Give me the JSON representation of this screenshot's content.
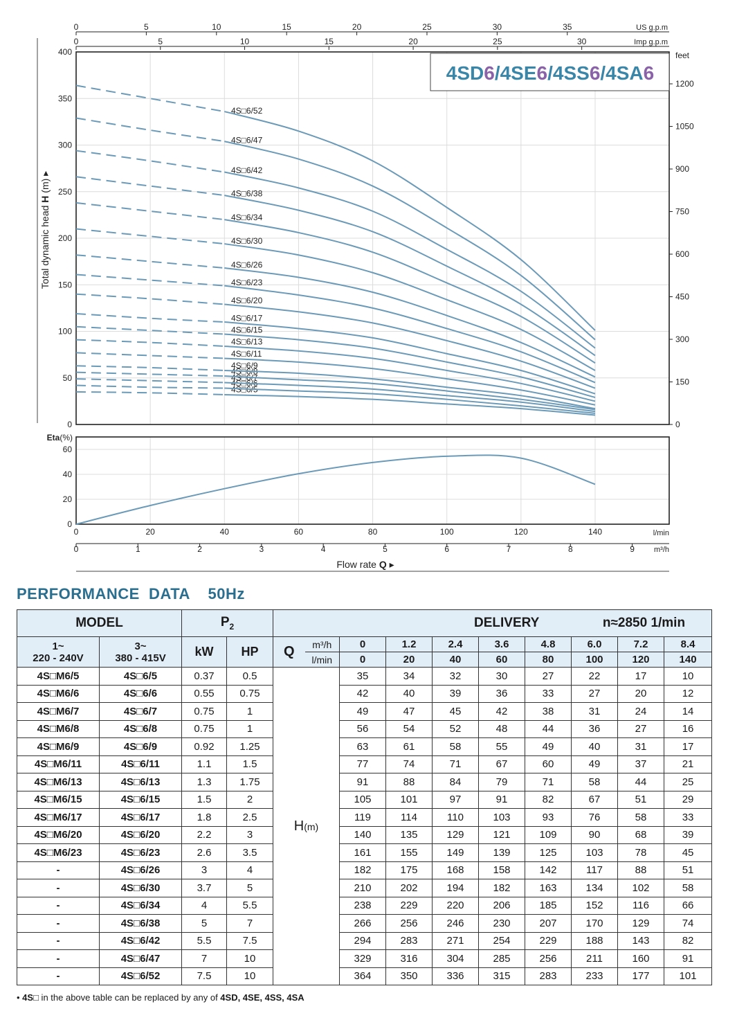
{
  "chart_data": [
    {
      "type": "line",
      "title": "4SD6/4SE6/4SS6/4SA6",
      "title_parts": [
        {
          "text": "4SD",
          "color": "#3a86a8"
        },
        {
          "text": "6",
          "color": "#8a62a8"
        },
        {
          "text": "/4SE",
          "color": "#3a86a8"
        },
        {
          "text": "6",
          "color": "#8a62a8"
        },
        {
          "text": "/4SS",
          "color": "#3a86a8"
        },
        {
          "text": "6",
          "color": "#8a62a8"
        },
        {
          "text": "/4SA",
          "color": "#3a86a8"
        },
        {
          "text": "6",
          "color": "#8a62a8"
        }
      ],
      "ylabel": "Total dynamic head H (m)",
      "ylim": [
        0,
        400
      ],
      "yticks": [
        0,
        50,
        100,
        150,
        200,
        250,
        300,
        350,
        400
      ],
      "right_axis": {
        "unit": "feet",
        "ticks": [
          0,
          150,
          300,
          450,
          600,
          750,
          900,
          1050,
          1200
        ]
      },
      "top_axis_us": {
        "unit": "US g.p.m",
        "ticks": [
          0,
          5,
          10,
          15,
          20,
          25,
          30,
          35
        ]
      },
      "top_axis_imp": {
        "unit": "Imp g.p.m",
        "ticks": [
          0,
          5,
          10,
          15,
          20,
          25,
          30
        ]
      },
      "x_lpm": [
        0,
        20,
        40,
        60,
        80,
        100,
        120,
        140
      ],
      "dashed_until_lpm": 40,
      "grid": true,
      "series": [
        {
          "name": "4S□6/5",
          "values": [
            35,
            34,
            32,
            30,
            27,
            22,
            17,
            10
          ]
        },
        {
          "name": "4S□6/6",
          "values": [
            42,
            40,
            39,
            36,
            33,
            27,
            20,
            12
          ]
        },
        {
          "name": "4S□6/7",
          "values": [
            49,
            47,
            45,
            42,
            38,
            31,
            24,
            14
          ]
        },
        {
          "name": "4S□6/8",
          "values": [
            56,
            54,
            52,
            48,
            44,
            36,
            27,
            16
          ]
        },
        {
          "name": "4S□6/9",
          "values": [
            63,
            61,
            58,
            55,
            49,
            40,
            31,
            17
          ]
        },
        {
          "name": "4S□6/11",
          "values": [
            77,
            74,
            71,
            67,
            60,
            49,
            37,
            21
          ]
        },
        {
          "name": "4S□6/13",
          "values": [
            91,
            88,
            84,
            79,
            71,
            58,
            44,
            25
          ]
        },
        {
          "name": "4S□6/15",
          "values": [
            105,
            101,
            97,
            91,
            82,
            67,
            51,
            29
          ]
        },
        {
          "name": "4S□6/17",
          "values": [
            119,
            114,
            110,
            103,
            93,
            76,
            58,
            33
          ]
        },
        {
          "name": "4S□6/20",
          "values": [
            140,
            135,
            129,
            121,
            109,
            90,
            68,
            39
          ]
        },
        {
          "name": "4S□6/23",
          "values": [
            161,
            155,
            149,
            139,
            125,
            103,
            78,
            45
          ]
        },
        {
          "name": "4S□6/26",
          "values": [
            182,
            175,
            168,
            158,
            142,
            117,
            88,
            51
          ]
        },
        {
          "name": "4S□6/30",
          "values": [
            210,
            202,
            194,
            182,
            163,
            134,
            102,
            58
          ]
        },
        {
          "name": "4S□6/34",
          "values": [
            238,
            229,
            220,
            206,
            185,
            152,
            116,
            66
          ]
        },
        {
          "name": "4S□6/38",
          "values": [
            266,
            256,
            246,
            230,
            207,
            170,
            129,
            74
          ]
        },
        {
          "name": "4S□6/42",
          "values": [
            294,
            283,
            271,
            254,
            229,
            188,
            143,
            82
          ]
        },
        {
          "name": "4S□6/47",
          "values": [
            329,
            316,
            304,
            285,
            256,
            211,
            160,
            91
          ]
        },
        {
          "name": "4S□6/52",
          "values": [
            364,
            350,
            336,
            315,
            283,
            233,
            177,
            101
          ]
        }
      ],
      "line_color": "#6b9ab8"
    },
    {
      "type": "line",
      "ylabel_bold": "Eta",
      "ylabel_unit": "(%)",
      "ylim": [
        0,
        60
      ],
      "yticks": [
        0,
        20,
        40,
        60
      ],
      "x_lpm": [
        0,
        20,
        40,
        60,
        80,
        100,
        120,
        140
      ],
      "values": [
        0,
        15,
        28.5,
        40.5,
        49.5,
        54.5,
        53,
        32
      ],
      "x_axis_lpm": {
        "unit": "l/min",
        "ticks": [
          0,
          20,
          40,
          60,
          80,
          100,
          120,
          140
        ]
      },
      "x_axis_m3h": {
        "unit": "m³/h",
        "ticks": [
          0,
          1,
          2,
          3,
          4,
          5,
          6,
          7,
          8,
          9
        ]
      },
      "xlabel": "Flow rate",
      "xlabel_symbol": "Q"
    }
  ],
  "performance": {
    "title": "PERFORMANCE  DATA    50Hz",
    "header": {
      "model": "MODEL",
      "p2": "P",
      "p2_sub": "2",
      "delivery": "DELIVERY",
      "speed": "n≈2850 1/min",
      "single_phase": "1~",
      "single_phase_v": "220 - 240V",
      "three_phase": "3~",
      "three_phase_v": "380 - 415V",
      "kw": "kW",
      "hp": "HP",
      "q": "Q",
      "q_unit1": "m³/h",
      "q_unit2": "l/min",
      "h": "H",
      "h_unit": "(m)"
    },
    "q_m3h": [
      "0",
      "1.2",
      "2.4",
      "3.6",
      "4.8",
      "6.0",
      "7.2",
      "8.4"
    ],
    "q_lmin": [
      "0",
      "20",
      "40",
      "60",
      "80",
      "100",
      "120",
      "140"
    ],
    "rows": [
      {
        "m1": "4S□M6/5",
        "m3": "4S□6/5",
        "kw": "0.37",
        "hp": "0.5",
        "h": [
          "35",
          "34",
          "32",
          "30",
          "27",
          "22",
          "17",
          "10"
        ]
      },
      {
        "m1": "4S□M6/6",
        "m3": "4S□6/6",
        "kw": "0.55",
        "hp": "0.75",
        "h": [
          "42",
          "40",
          "39",
          "36",
          "33",
          "27",
          "20",
          "12"
        ]
      },
      {
        "m1": "4S□M6/7",
        "m3": "4S□6/7",
        "kw": "0.75",
        "hp": "1",
        "h": [
          "49",
          "47",
          "45",
          "42",
          "38",
          "31",
          "24",
          "14"
        ]
      },
      {
        "m1": "4S□M6/8",
        "m3": "4S□6/8",
        "kw": "0.75",
        "hp": "1",
        "h": [
          "56",
          "54",
          "52",
          "48",
          "44",
          "36",
          "27",
          "16"
        ]
      },
      {
        "m1": "4S□M6/9",
        "m3": "4S□6/9",
        "kw": "0.92",
        "hp": "1.25",
        "h": [
          "63",
          "61",
          "58",
          "55",
          "49",
          "40",
          "31",
          "17"
        ]
      },
      {
        "m1": "4S□M6/11",
        "m3": "4S□6/11",
        "kw": "1.1",
        "hp": "1.5",
        "h": [
          "77",
          "74",
          "71",
          "67",
          "60",
          "49",
          "37",
          "21"
        ]
      },
      {
        "m1": "4S□M6/13",
        "m3": "4S□6/13",
        "kw": "1.3",
        "hp": "1.75",
        "h": [
          "91",
          "88",
          "84",
          "79",
          "71",
          "58",
          "44",
          "25"
        ]
      },
      {
        "m1": "4S□M6/15",
        "m3": "4S□6/15",
        "kw": "1.5",
        "hp": "2",
        "h": [
          "105",
          "101",
          "97",
          "91",
          "82",
          "67",
          "51",
          "29"
        ]
      },
      {
        "m1": "4S□M6/17",
        "m3": "4S□6/17",
        "kw": "1.8",
        "hp": "2.5",
        "h": [
          "119",
          "114",
          "110",
          "103",
          "93",
          "76",
          "58",
          "33"
        ]
      },
      {
        "m1": "4S□M6/20",
        "m3": "4S□6/20",
        "kw": "2.2",
        "hp": "3",
        "h": [
          "140",
          "135",
          "129",
          "121",
          "109",
          "90",
          "68",
          "39"
        ]
      },
      {
        "m1": "4S□M6/23",
        "m3": "4S□6/23",
        "kw": "2.6",
        "hp": "3.5",
        "h": [
          "161",
          "155",
          "149",
          "139",
          "125",
          "103",
          "78",
          "45"
        ]
      },
      {
        "m1": "-",
        "m3": "4S□6/26",
        "kw": "3",
        "hp": "4",
        "h": [
          "182",
          "175",
          "168",
          "158",
          "142",
          "117",
          "88",
          "51"
        ]
      },
      {
        "m1": "-",
        "m3": "4S□6/30",
        "kw": "3.7",
        "hp": "5",
        "h": [
          "210",
          "202",
          "194",
          "182",
          "163",
          "134",
          "102",
          "58"
        ]
      },
      {
        "m1": "-",
        "m3": "4S□6/34",
        "kw": "4",
        "hp": "5.5",
        "h": [
          "238",
          "229",
          "220",
          "206",
          "185",
          "152",
          "116",
          "66"
        ]
      },
      {
        "m1": "-",
        "m3": "4S□6/38",
        "kw": "5",
        "hp": "7",
        "h": [
          "266",
          "256",
          "246",
          "230",
          "207",
          "170",
          "129",
          "74"
        ]
      },
      {
        "m1": "-",
        "m3": "4S□6/42",
        "kw": "5.5",
        "hp": "7.5",
        "h": [
          "294",
          "283",
          "271",
          "254",
          "229",
          "188",
          "143",
          "82"
        ]
      },
      {
        "m1": "-",
        "m3": "4S□6/47",
        "kw": "7",
        "hp": "10",
        "h": [
          "329",
          "316",
          "304",
          "285",
          "256",
          "211",
          "160",
          "91"
        ]
      },
      {
        "m1": "-",
        "m3": "4S□6/52",
        "kw": "7.5",
        "hp": "10",
        "h": [
          "364",
          "350",
          "336",
          "315",
          "283",
          "233",
          "177",
          "101"
        ]
      }
    ],
    "note_pre": "• ",
    "note_a": "4S□",
    "note_b": " in the above table can be replaced by any of ",
    "note_c": "4SD, 4SE, 4SS, 4SA"
  }
}
